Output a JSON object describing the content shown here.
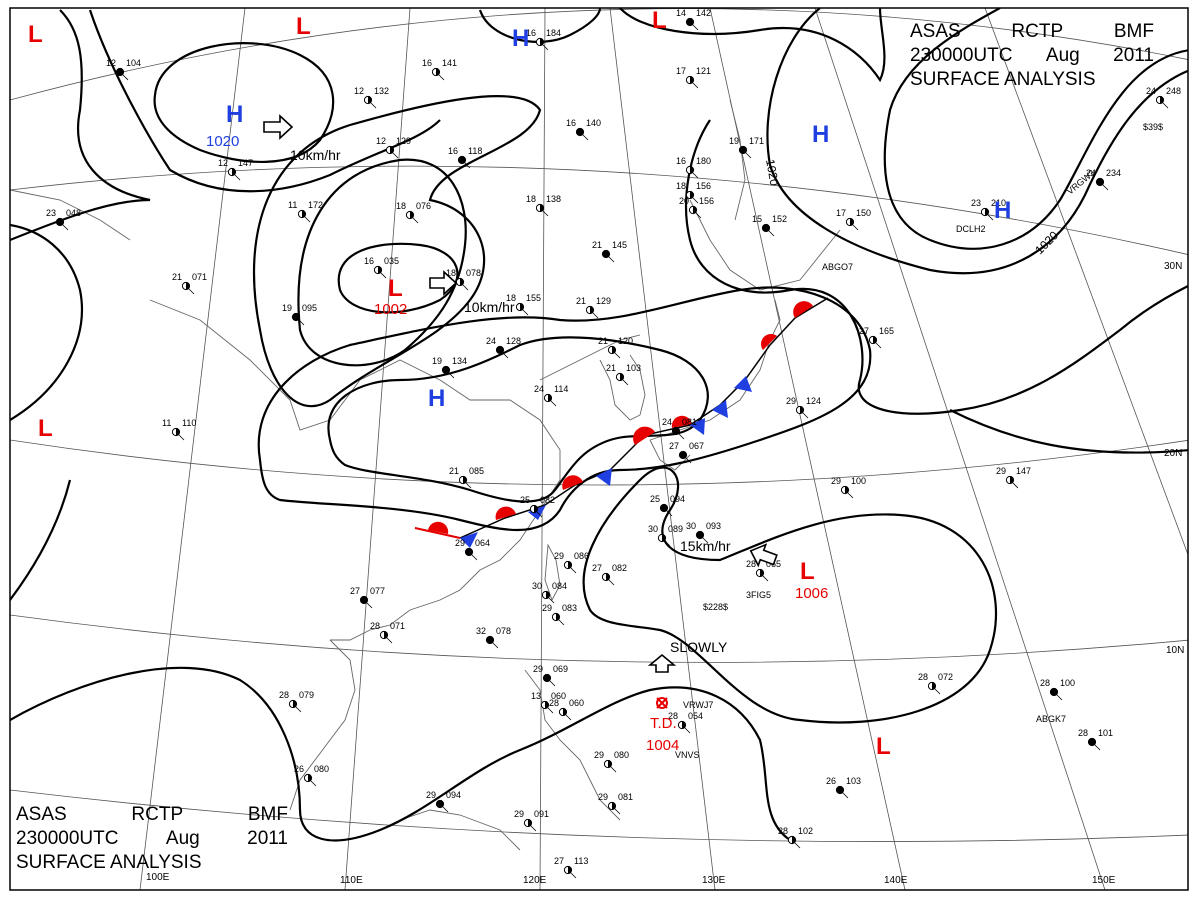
{
  "header": {
    "line1": [
      "ASAS",
      "RCTP",
      "BMF"
    ],
    "line2": [
      "230000UTC",
      "Aug",
      "2011"
    ],
    "line3": "SURFACE ANALYSIS"
  },
  "pressure_centers": [
    {
      "type": "H",
      "value": "1020"
    },
    {
      "type": "H",
      "value": ""
    },
    {
      "type": "H",
      "value": ""
    },
    {
      "type": "H",
      "value": ""
    },
    {
      "type": "H",
      "value": ""
    },
    {
      "type": "L",
      "value": "1002"
    },
    {
      "type": "L",
      "value": "1006"
    },
    {
      "type": "L",
      "value": ""
    },
    {
      "type": "L",
      "value": ""
    },
    {
      "type": "L",
      "value": ""
    },
    {
      "type": "L",
      "value": ""
    },
    {
      "type": "L",
      "value": ""
    }
  ],
  "tropical_depression": {
    "label": "T.D.",
    "value": "1004"
  },
  "motion_labels": {
    "m1": "10km/hr",
    "m2": "10km/hr",
    "m3": "15km/hr",
    "m4": "SLOWLY"
  },
  "isobar_labels": {
    "a": "1020",
    "b": "1020"
  },
  "lat_labels": {
    "lat30": "30N",
    "lat20": "20N",
    "lat10": "10N"
  },
  "lon_labels": {
    "lon100": "100E",
    "lon110": "110E",
    "lon120": "120E",
    "lon130": "130E",
    "lon140": "140E",
    "lon150": "150E"
  },
  "ship_ids": {
    "s1": "VRWJ7",
    "s2": "VNVS",
    "s3": "3FIG5",
    "s4": "$228$",
    "s5": "ABGK7",
    "s6": "DCLH2",
    "s7": "VRGW3",
    "s8": "$39$",
    "s9": "ABGO7"
  },
  "stations": [
    [
      "12",
      "104"
    ],
    [
      "16",
      "141"
    ],
    [
      "16",
      "184"
    ],
    [
      "14",
      "142"
    ],
    [
      "12",
      "132"
    ],
    [
      "12",
      "147"
    ],
    [
      "16",
      "140"
    ],
    [
      "17",
      "121"
    ],
    [
      "12",
      "129"
    ],
    [
      "16",
      "118"
    ],
    [
      "18",
      "138"
    ],
    [
      "18",
      "156"
    ],
    [
      "19",
      "171"
    ],
    [
      "20",
      "156"
    ],
    [
      "17",
      "150"
    ],
    [
      "15",
      "152"
    ],
    [
      "11",
      "172"
    ],
    [
      "18",
      "076"
    ],
    [
      "23",
      "048"
    ],
    [
      "16",
      "035"
    ],
    [
      "18",
      "078"
    ],
    [
      "21",
      "145"
    ],
    [
      "16",
      "180"
    ],
    [
      "23",
      "210"
    ],
    [
      "24",
      "234"
    ],
    [
      "24",
      "248"
    ],
    [
      "21",
      "071"
    ],
    [
      "19",
      "095"
    ],
    [
      "18",
      "155"
    ],
    [
      "21",
      "129"
    ],
    [
      "24",
      "128"
    ],
    [
      "21",
      "120"
    ],
    [
      "27",
      "165"
    ],
    [
      "19",
      "134"
    ],
    [
      "21",
      "103"
    ],
    [
      "24",
      "114"
    ],
    [
      "24",
      "081"
    ],
    [
      "29",
      "124"
    ],
    [
      "11",
      "110"
    ],
    [
      "27",
      "067"
    ],
    [
      "21",
      "085"
    ],
    [
      "25",
      "082"
    ],
    [
      "25",
      "094"
    ],
    [
      "29",
      "147"
    ],
    [
      "29",
      "100"
    ],
    [
      "29",
      "064"
    ],
    [
      "30",
      "089"
    ],
    [
      "29",
      "086"
    ],
    [
      "30",
      "093"
    ],
    [
      "27",
      "082"
    ],
    [
      "28",
      "065"
    ],
    [
      "27",
      "077"
    ],
    [
      "30",
      "084"
    ],
    [
      "28",
      "071"
    ],
    [
      "32",
      "078"
    ],
    [
      "29",
      "083"
    ],
    [
      "28",
      "079"
    ],
    [
      "29",
      "069"
    ],
    [
      "28",
      "060"
    ],
    [
      "28",
      "072"
    ],
    [
      "28",
      "100"
    ],
    [
      "13",
      "060"
    ],
    [
      "28",
      "054"
    ],
    [
      "28",
      "101"
    ],
    [
      "26",
      "080"
    ],
    [
      "29",
      "080"
    ],
    [
      "29",
      "094"
    ],
    [
      "29",
      "091"
    ],
    [
      "29",
      "081"
    ],
    [
      "26",
      "103"
    ],
    [
      "27",
      "113"
    ],
    [
      "28",
      "102"
    ]
  ]
}
